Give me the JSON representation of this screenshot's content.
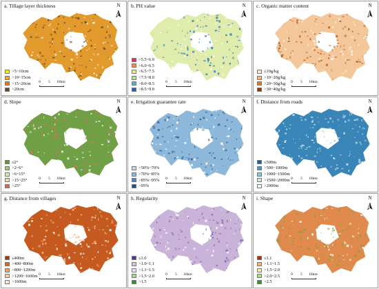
{
  "panels": [
    {
      "title": "a. Tillage layer thickness",
      "fill": "#e39a2c",
      "spot": "#6b4b2e",
      "legend": [
        {
          "label": ">5~10cm",
          "color": "#fde725"
        },
        {
          "label": ">10~15cm",
          "color": "#f0a431"
        },
        {
          "label": ">15~20cm",
          "color": "#e07b21"
        },
        {
          "label": ">20cm",
          "color": "#5b4a34"
        }
      ]
    },
    {
      "title": "b. PH value",
      "fill": "#e0ecab",
      "spot": "#3b7fbf",
      "legend": [
        {
          "label": ">5.5~6.0",
          "color": "#d6375a"
        },
        {
          "label": ">6.0~6.5",
          "color": "#f08b52"
        },
        {
          "label": ">6.5~7.5",
          "color": "#e8ee9c"
        },
        {
          "label": ">7.5~8.0",
          "color": "#b8e09c"
        },
        {
          "label": ">8.0~8.5",
          "color": "#58b1c0"
        },
        {
          "label": ">8.5~9.0",
          "color": "#2e5da8"
        }
      ]
    },
    {
      "title": "c. Organic matter content",
      "fill": "#f3c79a",
      "spot": "#b75a1a",
      "legend": [
        {
          "label": "≤10g/kg",
          "color": "#fbe8d3"
        },
        {
          "label": ">10~20g/kg",
          "color": "#f6b983"
        },
        {
          "label": ">20~30g/kg",
          "color": "#df7a2c"
        },
        {
          "label": ">30~40g/kg",
          "color": "#8b3a0a"
        }
      ]
    },
    {
      "title": "d. Slope",
      "fill": "#6fa046",
      "spot": "#d6735f",
      "legend": [
        {
          "label": "≤2°",
          "color": "#5c9a3d"
        },
        {
          "label": ">2~6°",
          "color": "#9cc878"
        },
        {
          "label": ">6~15°",
          "color": "#d4e8bd"
        },
        {
          "label": ">15~25°",
          "color": "#f0d2b8"
        },
        {
          "label": ">25°",
          "color": "#c97258"
        }
      ]
    },
    {
      "title": "e. Irrigation guarantee rate",
      "fill": "#8eb8da",
      "spot": "#2d5f9b",
      "legend": [
        {
          "label": ">50%~70%",
          "color": "#c6d8ec"
        },
        {
          "label": ">70%~85%",
          "color": "#8cb6dd"
        },
        {
          "label": ">85%~95%",
          "color": "#4f86bf"
        },
        {
          "label": ">95%",
          "color": "#1e4e8c"
        }
      ]
    },
    {
      "title": "f. Distance from roads",
      "fill": "#3a85b8",
      "spot": "#a8d8e2",
      "legend": [
        {
          "label": "≤500m",
          "color": "#1f5f94"
        },
        {
          "label": ">500~1000m",
          "color": "#4795c5"
        },
        {
          "label": ">1000~1500m",
          "color": "#8fc4d9"
        },
        {
          "label": ">1500~2000m",
          "color": "#c9e6ea"
        },
        {
          "label": ">2000m",
          "color": "#eef7f0"
        }
      ]
    },
    {
      "title": "g. Distance from villages",
      "fill": "#c45a1f",
      "spot": "#f2b47d",
      "legend": [
        {
          "label": "≤400m",
          "color": "#9a3f10"
        },
        {
          "label": ">400~800m",
          "color": "#d06a28"
        },
        {
          "label": ">800~1200m",
          "color": "#eea06a"
        },
        {
          "label": ">1200~1600m",
          "color": "#f7cda6"
        },
        {
          "label": ">1600m",
          "color": "#fbe7d4"
        }
      ]
    },
    {
      "title": "h. Regularity",
      "fill": "#c9b3d9",
      "spot": "#8d6fb3",
      "legend": [
        {
          "label": "≤1.0",
          "color": "#5d2d8a"
        },
        {
          "label": ">1.0~1.1",
          "color": "#d6c4e4"
        },
        {
          "label": ">1.1~1.5",
          "color": "#eadff2"
        },
        {
          "label": ">1.5~2.0",
          "color": "#a8d590"
        },
        {
          "label": ">1.5",
          "color": "#3a8a3a"
        }
      ]
    },
    {
      "title": "i. Shape",
      "fill": "#e08a4e",
      "spot": "#8a9e3a",
      "legend": [
        {
          "label": "≤1.1",
          "color": "#a63010"
        },
        {
          "label": ">1.1~1.5",
          "color": "#f4b27c"
        },
        {
          "label": ">1.5~2.0",
          "color": "#fbe3c6"
        },
        {
          "label": ">2.0~2.5",
          "color": "#b6d98c"
        },
        {
          "label": ">2.5",
          "color": "#3f8f3a"
        }
      ]
    }
  ],
  "north_label": "N",
  "scale": {
    "t0": "0",
    "t1": "5",
    "t2": "10km"
  },
  "colors": {
    "border": "#9a9a9a",
    "text": "#111111"
  }
}
